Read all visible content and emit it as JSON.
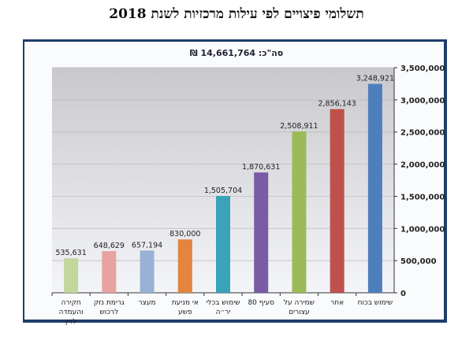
{
  "chart_data": {
    "type": "bar",
    "title": "תשלומי פיצויים לפי עילות מרכזיות לשנת 2018",
    "subtitle": "סה\"כ: 14,661,764 ₪",
    "categories": [
      "חקירה והעמדה לדין",
      "גרימת נזק לרכוש",
      "מעצר",
      "אי מניעת פשע",
      "שימוש בכלי יר״ה",
      "סעיף 80",
      "שמירה על עצורים",
      "אחר",
      "שימוש בכוח"
    ],
    "values": [
      535631,
      648629,
      657194,
      830000,
      1505704,
      1870631,
      2508911,
      2856143,
      3248921
    ],
    "value_labels": [
      "535,631",
      "648,629",
      "657,194",
      "830,000",
      "1,505,704",
      "1,870,631",
      "2,508,911",
      "2,856,143",
      "3,248,921"
    ],
    "colors": [
      "#c3d69b",
      "#e6a3a1",
      "#98b2d6",
      "#e3843f",
      "#3aa2b9",
      "#7a5ca5",
      "#9bbb59",
      "#c0504d",
      "#4f7fbb"
    ],
    "ylim": [
      0,
      3500000
    ],
    "yticks": [
      "0",
      "500,000",
      "1,000,000",
      "1,500,000",
      "2,000,000",
      "2,500,000",
      "3,000,000",
      "3,500,000"
    ],
    "yaxis_position": "right",
    "grid": true
  }
}
